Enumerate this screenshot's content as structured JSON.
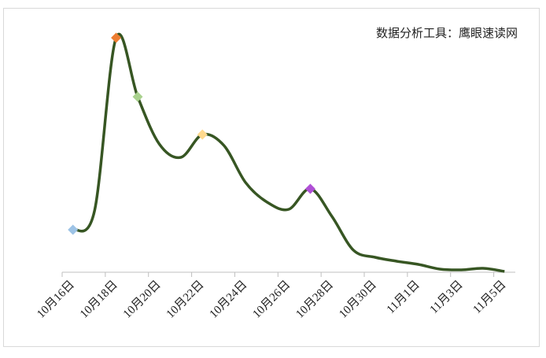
{
  "chart_data": {
    "type": "line",
    "title": "数据分析工具：鹰眼速读网",
    "categories": [
      "10月16日",
      null,
      "10月18日",
      null,
      "10月20日",
      null,
      "10月22日",
      null,
      "10月24日",
      null,
      "10月26日",
      null,
      "10月28日",
      null,
      "10月30日",
      null,
      "11月1日",
      null,
      "11月3日",
      null,
      "11月5日"
    ],
    "series": [
      {
        "color": "#375623",
        "values": [
          54,
          78,
          298,
          223,
          163,
          146,
          175,
          161,
          114,
          89,
          80,
          106,
          71,
          28,
          19,
          14,
          10,
          4,
          3,
          5,
          1
        ]
      }
    ],
    "markers": [
      {
        "index": 0,
        "color": "#9dc3e6"
      },
      {
        "index": 2,
        "color": "#ed7d31"
      },
      {
        "index": 3,
        "color": "#a9d18e"
      },
      {
        "index": 6,
        "color": "#ffd98e"
      },
      {
        "index": 11,
        "color": "#b04fd6"
      }
    ],
    "ylim": [
      0,
      310
    ]
  }
}
